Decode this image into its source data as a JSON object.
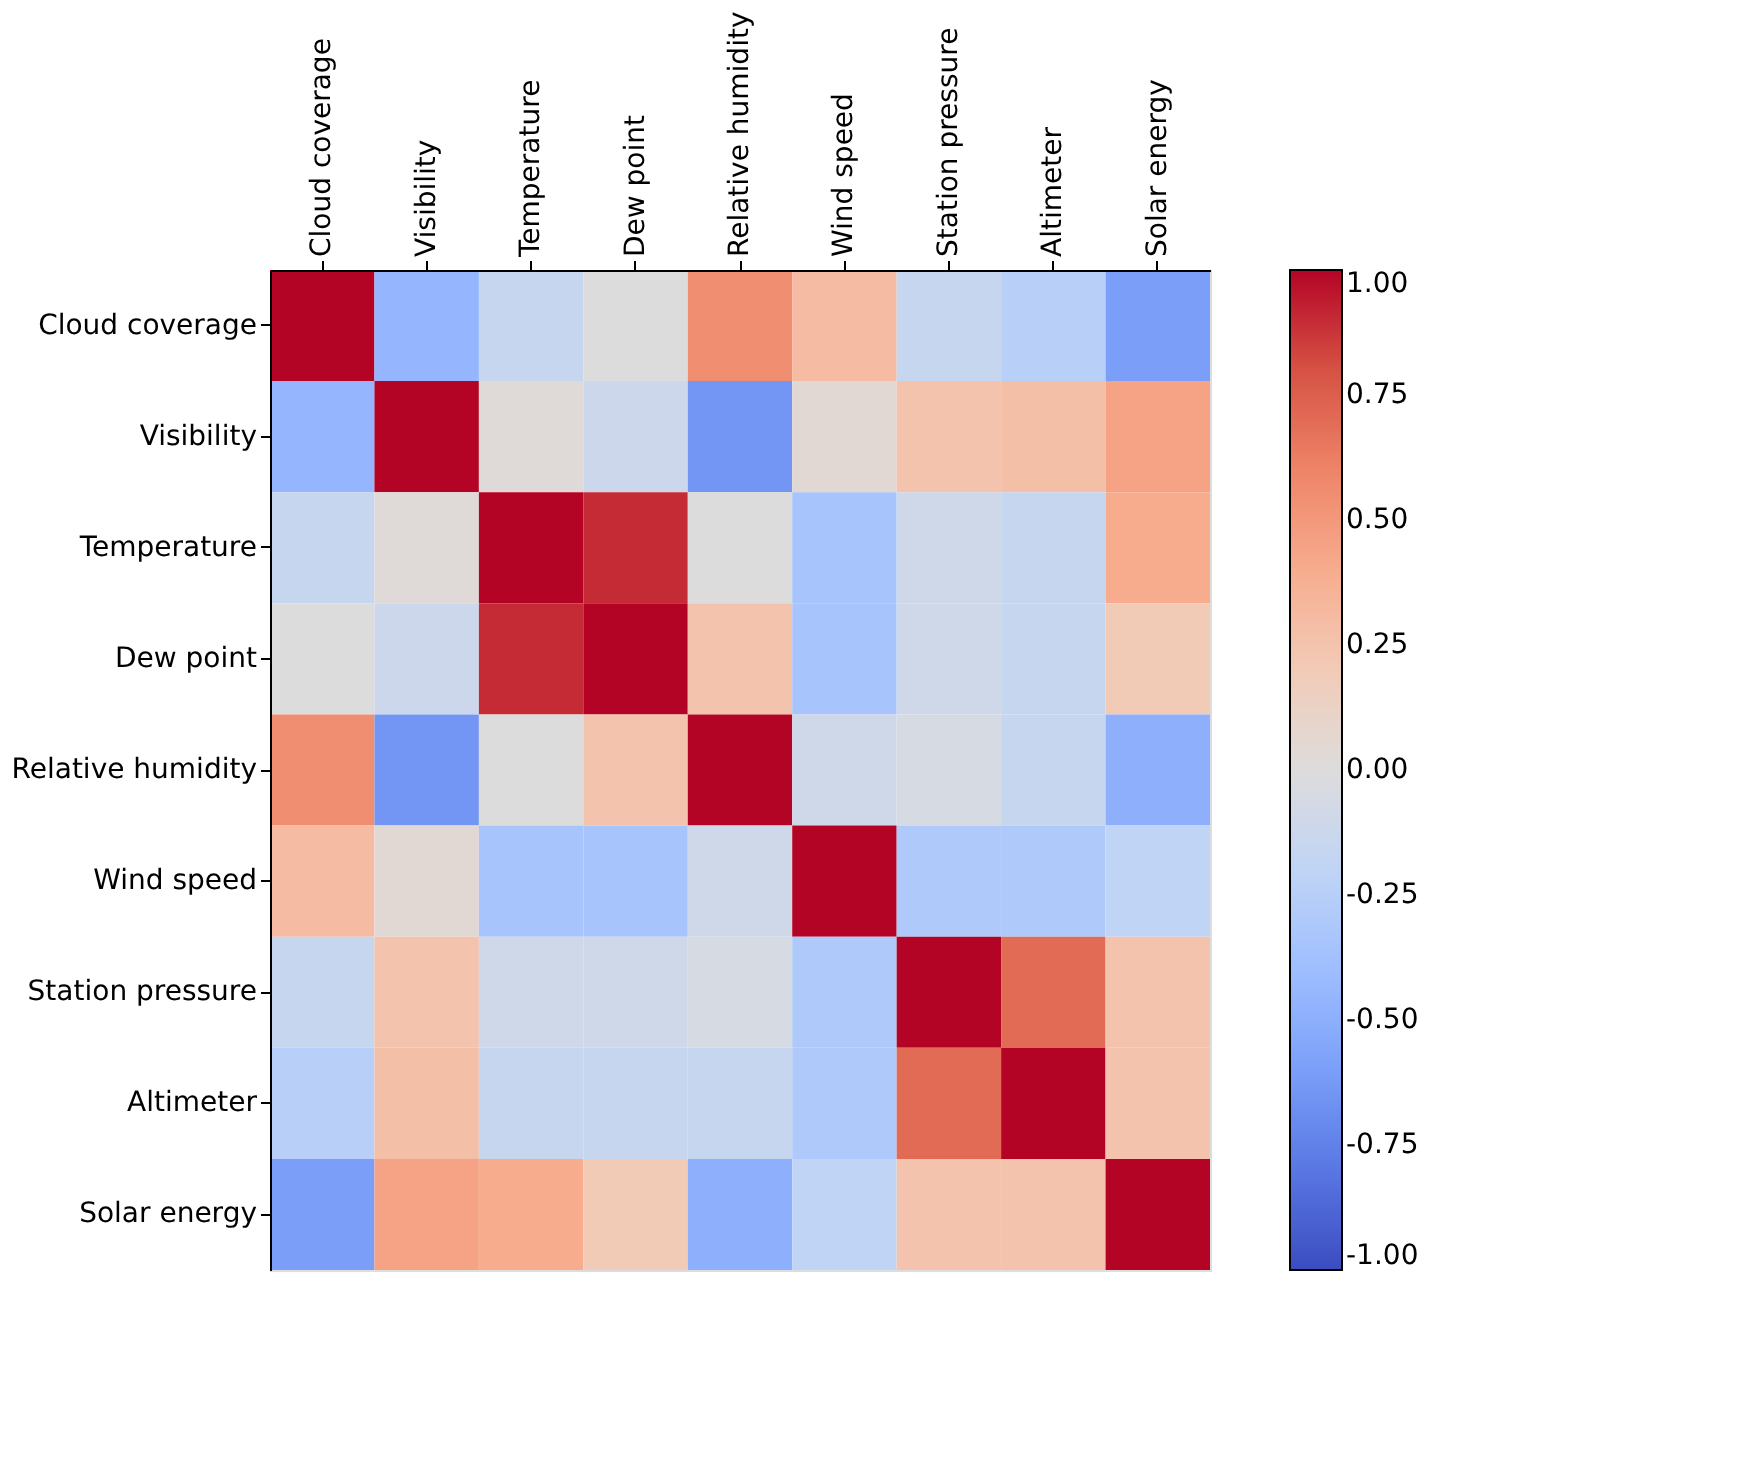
{
  "chart_data": {
    "type": "heatmap",
    "categories": [
      "Cloud coverage",
      "Visibility",
      "Temperature",
      "Dew point",
      "Relative humidity",
      "Wind speed",
      "Station pressure",
      "Altimeter",
      "Solar energy"
    ],
    "y_categories": [
      "Cloud coverage",
      "Visibility",
      "Temperature",
      "Dew point",
      "Relative humidity",
      "Wind speed",
      "Station pressure",
      "Altimeter",
      "Solar energy"
    ],
    "cells": [
      [
        1,
        -0.45,
        -0.15,
        0.0,
        0.55,
        0.3,
        -0.15,
        -0.25,
        -0.6
      ],
      [
        -0.45,
        1,
        0.02,
        -0.12,
        -0.65,
        0.05,
        0.25,
        0.28,
        0.45
      ],
      [
        -0.15,
        0.02,
        1,
        0.9,
        0.0,
        -0.35,
        -0.1,
        -0.15,
        0.4
      ],
      [
        0.0,
        -0.12,
        0.9,
        1,
        0.25,
        -0.35,
        -0.1,
        -0.15,
        0.2
      ],
      [
        0.55,
        -0.65,
        0.0,
        0.25,
        1,
        -0.1,
        -0.05,
        -0.15,
        -0.5
      ],
      [
        0.3,
        0.05,
        -0.35,
        -0.35,
        -0.1,
        1,
        -0.3,
        -0.3,
        -0.2
      ],
      [
        -0.15,
        0.25,
        -0.1,
        -0.1,
        -0.05,
        -0.3,
        1,
        0.7,
        0.25
      ],
      [
        -0.25,
        0.28,
        -0.15,
        -0.15,
        -0.15,
        -0.3,
        0.7,
        1,
        0.25
      ],
      [
        -0.6,
        0.45,
        0.4,
        0.2,
        -0.5,
        -0.2,
        0.25,
        0.25,
        1
      ]
    ],
    "clim": [
      -1,
      1
    ],
    "cticks": [
      {
        "value": -1,
        "label": "-1.00"
      },
      {
        "value": -0.75,
        "label": "-0.75"
      },
      {
        "value": -0.5,
        "label": "-0.50"
      },
      {
        "value": -0.25,
        "label": "-0.25"
      },
      {
        "value": 0,
        "label": "0.00"
      },
      {
        "value": 0.25,
        "label": "0.25"
      },
      {
        "value": 0.5,
        "label": "0.50"
      },
      {
        "value": 0.75,
        "label": "0.75"
      },
      {
        "value": 1,
        "label": "1.00"
      }
    ],
    "grid": false
  }
}
